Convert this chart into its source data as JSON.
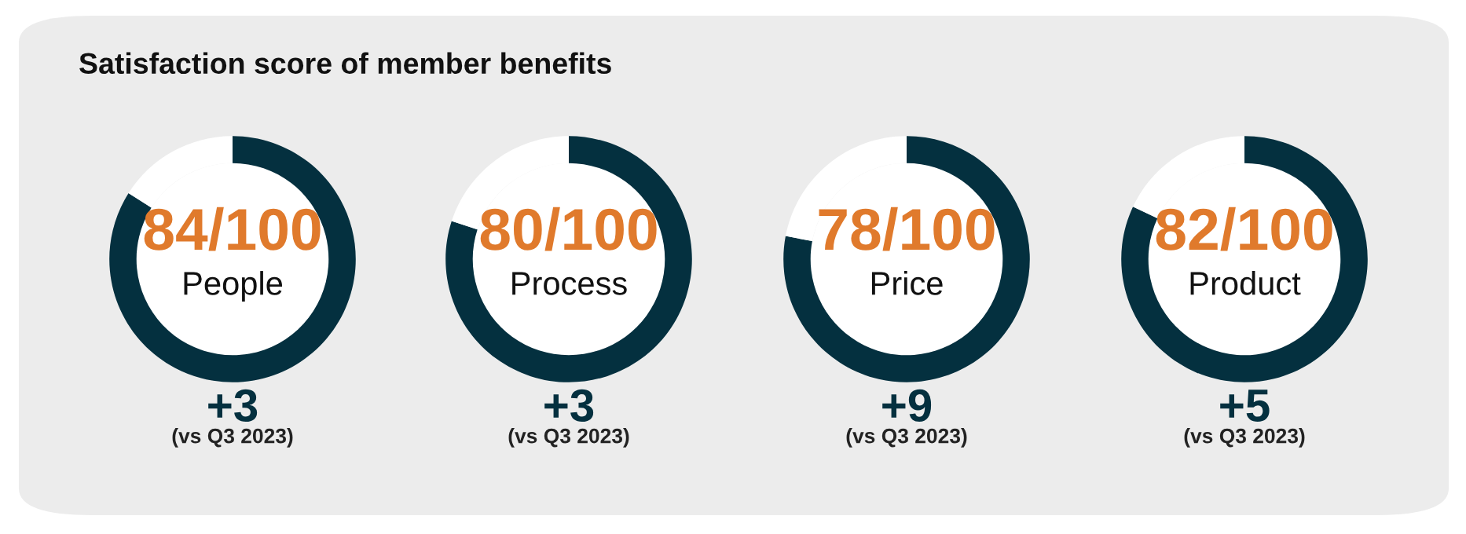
{
  "chart_data": [
    {
      "type": "donut",
      "title": "Satisfaction score of member benefits",
      "categories": [
        null,
        null
      ],
      "values": [
        84,
        16
      ],
      "colors": [
        "#04303f",
        "#ffffff"
      ],
      "annotations": [
        "84/100",
        "People",
        "+3",
        "(vs Q3 2023)"
      ]
    },
    {
      "type": "donut",
      "categories": [
        null,
        null
      ],
      "values": [
        80,
        20
      ],
      "colors": [
        "#04303f",
        "#ffffff"
      ],
      "annotations": [
        "80/100",
        "Process",
        "+3",
        "(vs Q3 2023)"
      ]
    },
    {
      "type": "donut",
      "categories": [
        null,
        null
      ],
      "values": [
        78,
        22
      ],
      "colors": [
        "#04303f",
        "#ffffff"
      ],
      "annotations": [
        "78/100",
        "Price",
        "+9",
        "(vs Q3 2023)"
      ]
    },
    {
      "type": "donut",
      "categories": [
        null,
        null
      ],
      "values": [
        82,
        18
      ],
      "colors": [
        "#04303f",
        "#ffffff"
      ],
      "annotations": [
        "82/100",
        "Product",
        "+5",
        "(vs Q3 2023)"
      ]
    }
  ]
}
